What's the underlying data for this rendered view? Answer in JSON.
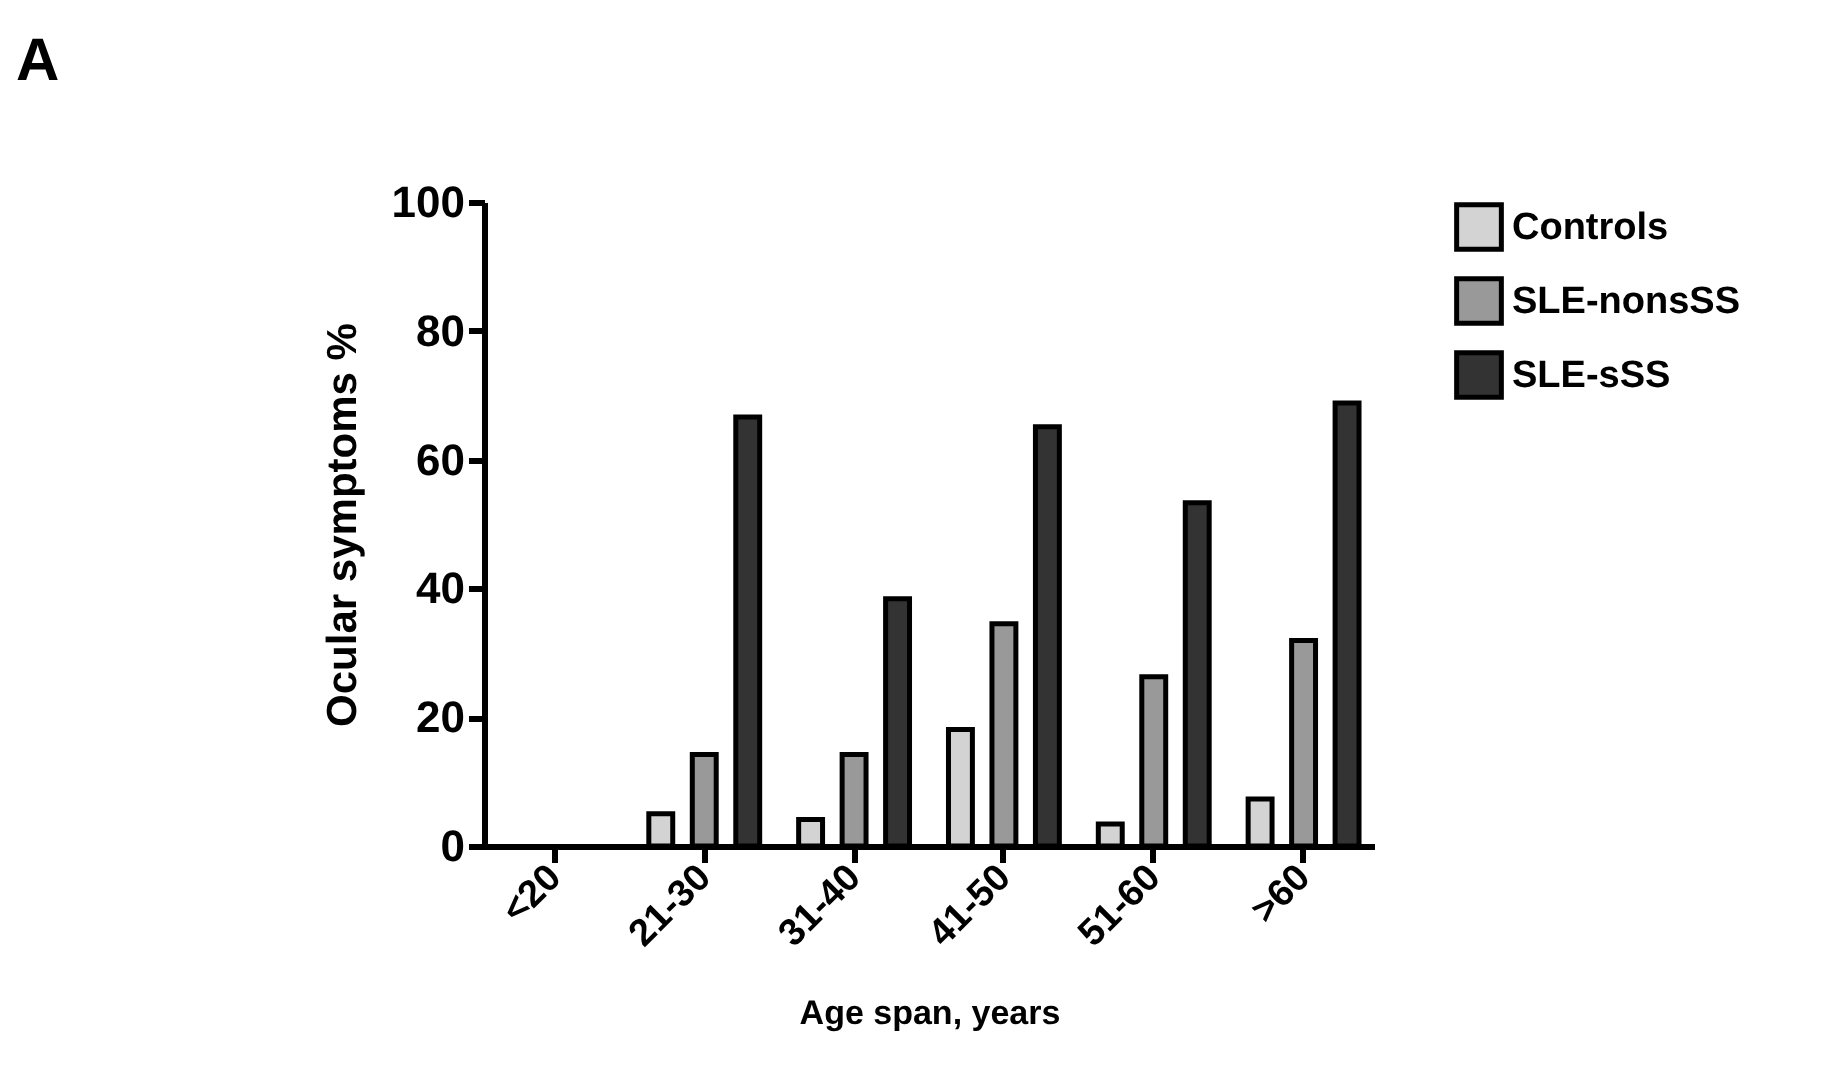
{
  "chart_data": {
    "type": "bar",
    "xlabel": "Age span, years",
    "ylabel": "Ocular symptoms %",
    "annotations": [
      "A"
    ],
    "categories": [
      "<20",
      "21-30",
      "31-40",
      "41-50",
      "51-60",
      ">60"
    ],
    "series": [
      {
        "name": "Controls",
        "color": "#d3d3d3",
        "values": [
          null,
          5.0,
          4.1,
          18.1,
          3.4,
          7.3
        ]
      },
      {
        "name": "SLE-nonsSS",
        "color": "#999999",
        "values": [
          null,
          14.2,
          14.2,
          34.5,
          26.3,
          31.9
        ]
      },
      {
        "name": "SLE-sSS",
        "color": "#333333",
        "values": [
          null,
          66.6,
          38.4,
          65.1,
          53.3,
          68.8
        ]
      }
    ],
    "ylim": [
      0,
      100
    ],
    "yticks": [
      0,
      20,
      40,
      60,
      80,
      100
    ],
    "grid": false,
    "legend": "top right"
  }
}
